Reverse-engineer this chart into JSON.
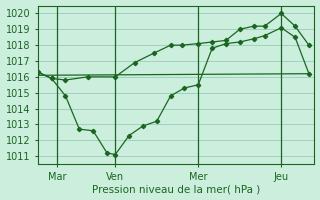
{
  "xlabel": "Pression niveau de la mer( hPa )",
  "background_color": "#cceedd",
  "grid_color": "#99ccbb",
  "line_color": "#1a6620",
  "ylim": [
    1010.5,
    1020.5
  ],
  "xlim": [
    0.0,
    10.0
  ],
  "day_ticks": [
    0.7,
    2.8,
    5.8,
    8.8
  ],
  "day_labels": [
    "Mar",
    "Ven",
    "Mer",
    "Jeu"
  ],
  "line_upper": {
    "x": [
      0.0,
      0.5,
      1.0,
      1.8,
      2.8,
      3.5,
      4.2,
      4.8,
      5.2,
      5.8,
      6.3,
      6.8,
      7.3,
      7.8,
      8.2,
      8.8,
      9.3,
      9.8
    ],
    "y": [
      1016.3,
      1015.9,
      1015.8,
      1016.0,
      1016.0,
      1016.9,
      1017.5,
      1018.0,
      1018.0,
      1018.1,
      1018.2,
      1018.3,
      1019.0,
      1019.2,
      1019.2,
      1020.0,
      1019.2,
      1018.0
    ]
  },
  "line_lower": {
    "x": [
      0.0,
      0.5,
      1.0,
      1.5,
      2.0,
      2.5,
      2.8,
      3.3,
      3.8,
      4.3,
      4.8,
      5.3,
      5.8,
      6.3,
      6.8,
      7.3,
      7.8,
      8.2,
      8.8,
      9.3,
      9.8
    ],
    "y": [
      1016.3,
      1015.9,
      1014.8,
      1012.7,
      1012.6,
      1011.2,
      1011.1,
      1012.3,
      1012.9,
      1013.2,
      1014.8,
      1015.3,
      1015.5,
      1017.8,
      1018.1,
      1018.2,
      1018.4,
      1018.6,
      1019.1,
      1018.5,
      1016.2
    ]
  },
  "line_diag": {
    "x": [
      0.0,
      9.8
    ],
    "y": [
      1016.1,
      1016.2
    ]
  },
  "yticks": [
    1011,
    1012,
    1013,
    1014,
    1015,
    1016,
    1017,
    1018,
    1019,
    1020
  ],
  "font_color": "#1a6620",
  "font_size": 7
}
